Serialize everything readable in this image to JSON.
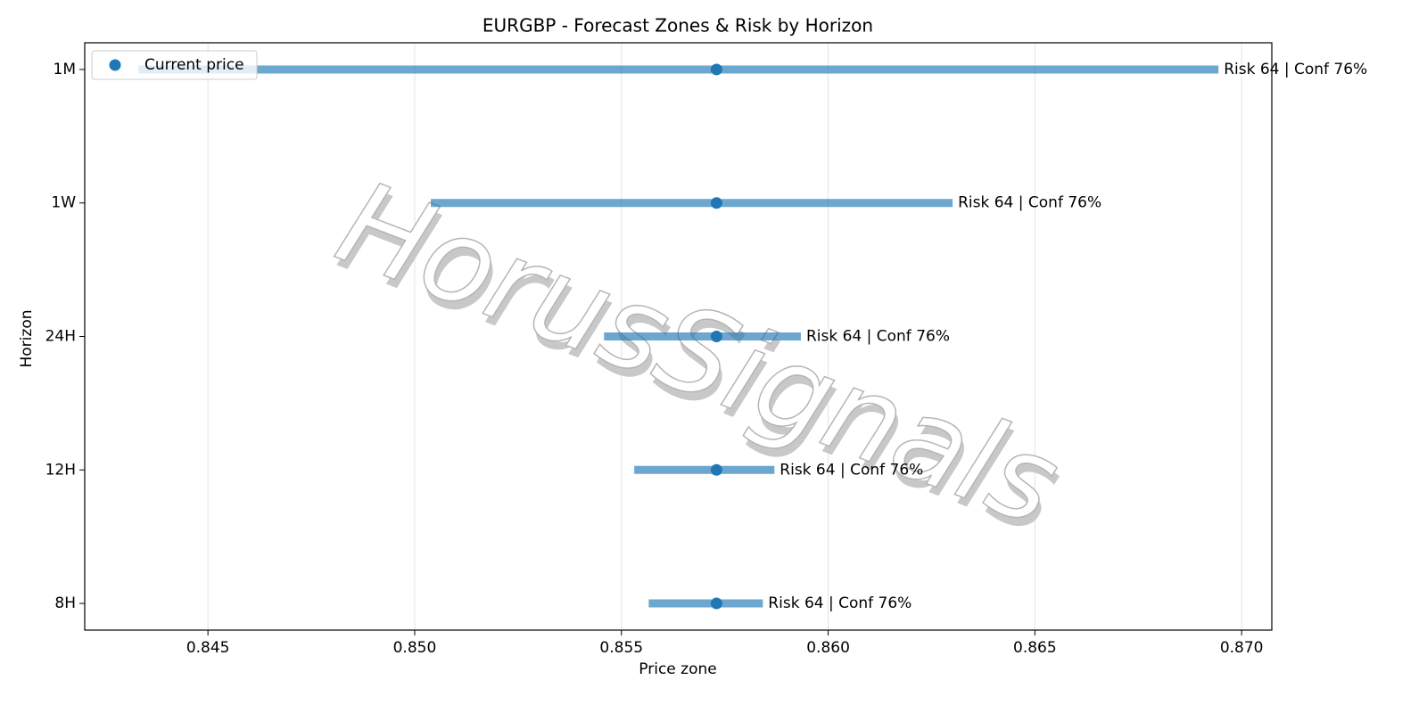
{
  "chart_data": {
    "type": "range",
    "title": "EURGBP - Forecast Zones & Risk by Horizon",
    "x_label": "Price zone",
    "y_label": "Horizon",
    "watermark": "HorusSignals",
    "categories": [
      "8H",
      "12H",
      "24H",
      "1W",
      "1M"
    ],
    "low": [
      0.85566,
      0.85531,
      0.85458,
      0.85039,
      0.84332
    ],
    "high": [
      0.85842,
      0.8587,
      0.85934,
      0.86301,
      0.86944
    ],
    "range_color": "#1f77b4",
    "annotations": [
      "Risk 64 | Conf 76%",
      "Risk 64 | Conf 76%",
      "Risk 64 | Conf 76%",
      "Risk 64 | Conf 76%",
      "Risk 64 | Conf 76%"
    ],
    "series": [
      {
        "name": "Current price",
        "color": "#1f77b4",
        "values": [
          0.8573,
          0.8573,
          0.8573,
          0.8573,
          0.8573
        ]
      }
    ],
    "xlim": [
      0.84202,
      0.87073
    ],
    "xticks": [
      0.845,
      {
        "value": 0.85,
        "label": "0.850"
      },
      0.855,
      {
        "value": 0.86,
        "label": "0.860"
      },
      0.865,
      {
        "value": 0.87,
        "label": "0.870"
      }
    ],
    "grid": true,
    "legend": "upper-left"
  }
}
